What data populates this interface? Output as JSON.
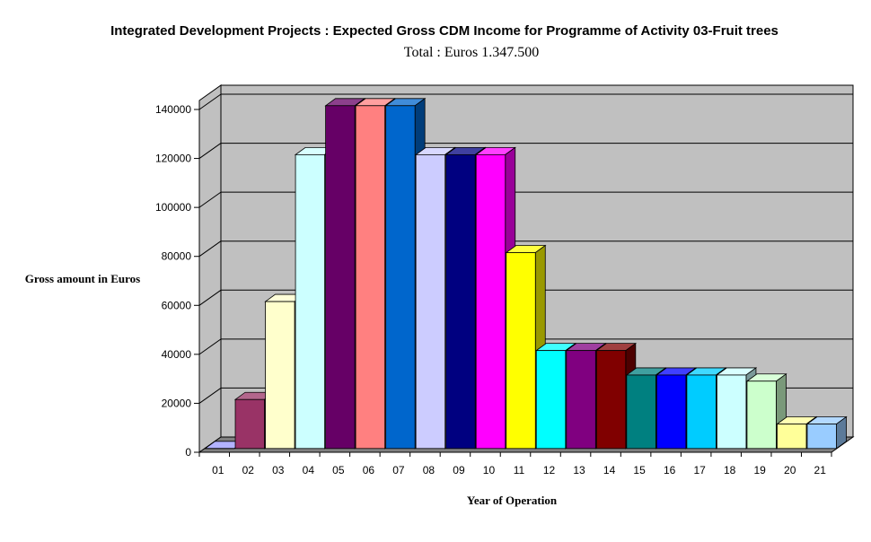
{
  "chart_data": {
    "type": "bar",
    "title": "Integrated Development Projects : Expected Gross CDM Income for Programme of Activity 03-Fruit trees",
    "subtitle": "Total : Euros 1.347.500",
    "xlabel": "Year of Operation",
    "ylabel": "Gross amount in Euros",
    "categories": [
      "01",
      "02",
      "03",
      "04",
      "05",
      "06",
      "07",
      "08",
      "09",
      "10",
      "11",
      "12",
      "13",
      "14",
      "15",
      "16",
      "17",
      "18",
      "19",
      "20",
      "21"
    ],
    "values": [
      0,
      20000,
      60000,
      120000,
      140000,
      140000,
      140000,
      120000,
      120000,
      120000,
      80000,
      40000,
      40000,
      40000,
      30000,
      30000,
      30000,
      30000,
      27500,
      10000,
      10000
    ],
    "colors": [
      "#9999ff",
      "#993366",
      "#ffffcc",
      "#ccffff",
      "#660066",
      "#ff8080",
      "#0066cc",
      "#ccccff",
      "#000080",
      "#ff00ff",
      "#ffff00",
      "#00ffff",
      "#800080",
      "#800000",
      "#008080",
      "#0000ff",
      "#00ccff",
      "#ccffff",
      "#ccffcc",
      "#ffff99",
      "#99ccff"
    ],
    "ylim": [
      0,
      140000
    ],
    "yticks": [
      "0",
      "20000",
      "40000",
      "60000",
      "80000",
      "100000",
      "120000",
      "140000"
    ],
    "grid": true,
    "style": "3d-column",
    "wall_color": "#c0c0c0",
    "floor_color": "#808080"
  }
}
